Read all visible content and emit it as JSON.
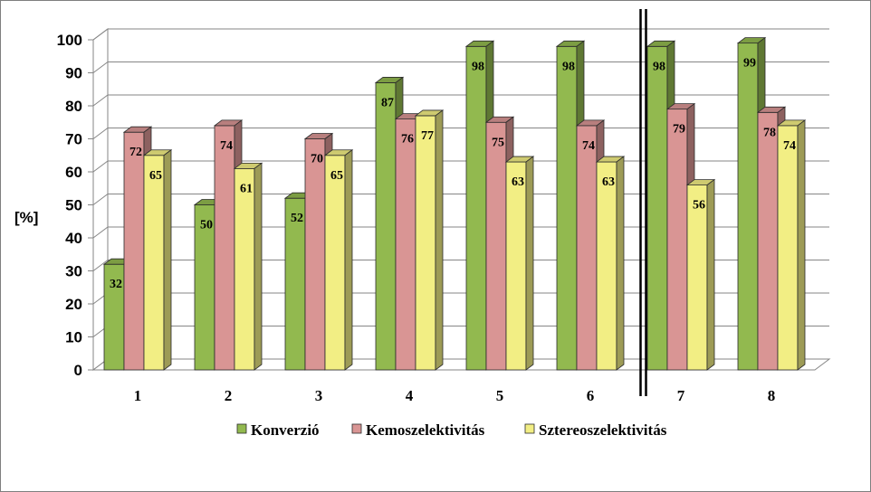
{
  "chart_data": {
    "type": "bar",
    "style": "3d-clustered-column",
    "ylabel": "[%]",
    "ylim": [
      0,
      100
    ],
    "yticks": [
      0,
      10,
      20,
      30,
      40,
      50,
      60,
      70,
      80,
      90,
      100
    ],
    "categories": [
      "1",
      "2",
      "3",
      "4",
      "5",
      "6",
      "7",
      "8"
    ],
    "series": [
      {
        "name": "Konverzió",
        "color": "#92b94f",
        "values": [
          32,
          50,
          52,
          87,
          98,
          98,
          98,
          99
        ]
      },
      {
        "name": "Kemoszelektivitás",
        "color": "#d99594",
        "values": [
          72,
          74,
          70,
          76,
          75,
          74,
          79,
          78
        ]
      },
      {
        "name": "Sztereoszelektivitás",
        "color": "#f2ee84",
        "values": [
          65,
          61,
          65,
          77,
          63,
          63,
          56,
          74
        ]
      }
    ],
    "grid": true,
    "legend": "bottom",
    "separator_after_category": "6"
  }
}
